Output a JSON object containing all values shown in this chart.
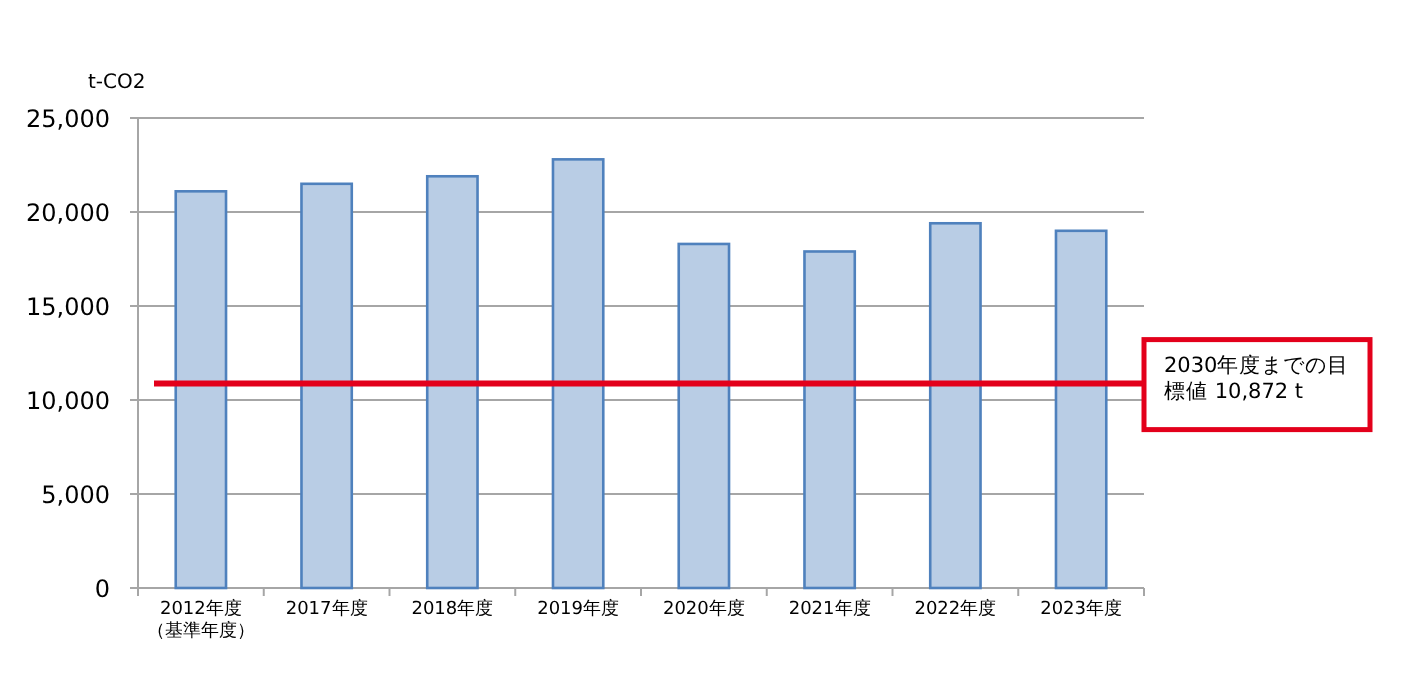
{
  "chart_data": {
    "type": "bar",
    "ylabel": "t-CO2",
    "categories": [
      "2012年度（基準年度）",
      "2017年度",
      "2018年度",
      "2019年度",
      "2020年度",
      "2021年度",
      "2022年度",
      "2023年度"
    ],
    "values": [
      21100,
      21500,
      21900,
      22800,
      18300,
      17900,
      19400,
      19000
    ],
    "color": "#b9cde5",
    "ylim": [
      0,
      25000
    ],
    "yticks": [
      {
        "value": 0,
        "label": "0"
      },
      {
        "value": 5000,
        "label": "5,000"
      },
      {
        "value": 10000,
        "label": "10,000"
      },
      {
        "value": 15000,
        "label": "15,000"
      },
      {
        "value": 20000,
        "label": "20,000"
      },
      {
        "value": 25000,
        "label": "25,000"
      }
    ],
    "grid": "y",
    "ref_lines": [
      {
        "axis": "y",
        "value": 10872,
        "label": "2030年度までの目標値 10,872 t",
        "color": "#e3001b"
      }
    ]
  }
}
